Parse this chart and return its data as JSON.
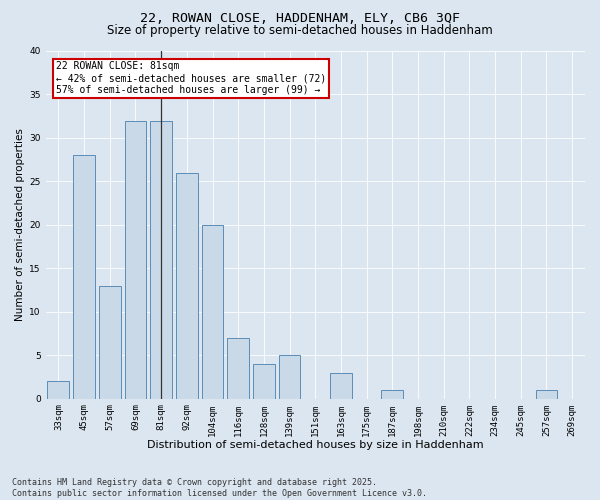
{
  "title1": "22, ROWAN CLOSE, HADDENHAM, ELY, CB6 3QF",
  "title2": "Size of property relative to semi-detached houses in Haddenham",
  "xlabel": "Distribution of semi-detached houses by size in Haddenham",
  "ylabel": "Number of semi-detached properties",
  "categories": [
    "33sqm",
    "45sqm",
    "57sqm",
    "69sqm",
    "81sqm",
    "92sqm",
    "104sqm",
    "116sqm",
    "128sqm",
    "139sqm",
    "151sqm",
    "163sqm",
    "175sqm",
    "187sqm",
    "198sqm",
    "210sqm",
    "222sqm",
    "234sqm",
    "245sqm",
    "257sqm",
    "269sqm"
  ],
  "values": [
    2,
    28,
    13,
    32,
    32,
    26,
    20,
    7,
    4,
    5,
    0,
    3,
    0,
    1,
    0,
    0,
    0,
    0,
    0,
    1,
    0
  ],
  "bar_color": "#c9d9e8",
  "bar_edge_color": "#5b8db8",
  "vline_x_index": 4,
  "vline_color": "#333333",
  "annotation_title": "22 ROWAN CLOSE: 81sqm",
  "annotation_line1": "← 42% of semi-detached houses are smaller (72)",
  "annotation_line2": "57% of semi-detached houses are larger (99) →",
  "annotation_box_color": "#ffffff",
  "annotation_box_edge": "#cc0000",
  "ylim": [
    0,
    40
  ],
  "yticks": [
    0,
    5,
    10,
    15,
    20,
    25,
    30,
    35,
    40
  ],
  "background_color": "#dce6f0",
  "grid_color": "#ffffff",
  "footer1": "Contains HM Land Registry data © Crown copyright and database right 2025.",
  "footer2": "Contains public sector information licensed under the Open Government Licence v3.0.",
  "title1_fontsize": 9.5,
  "title2_fontsize": 8.5,
  "xlabel_fontsize": 8,
  "ylabel_fontsize": 7.5,
  "tick_fontsize": 6.5,
  "annotation_fontsize": 7,
  "footer_fontsize": 6
}
